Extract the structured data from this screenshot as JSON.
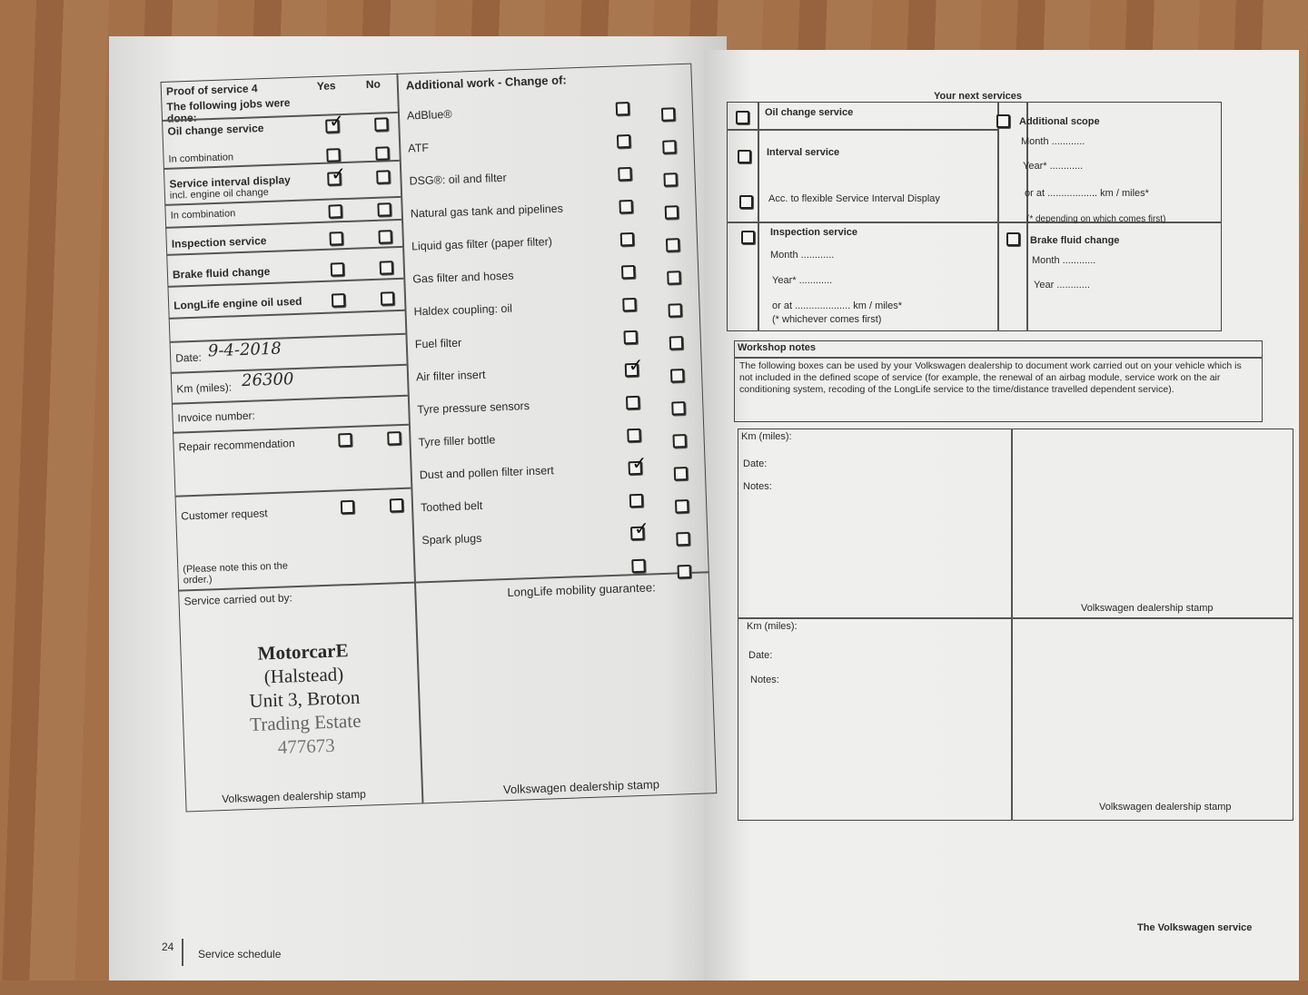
{
  "left_page": {
    "title": "Proof of service 4",
    "yes": "Yes",
    "no": "No",
    "jobs_intro": "The following jobs were done:",
    "jobs": [
      {
        "label": "Oil change service",
        "yes": true,
        "no": false
      },
      {
        "label": "In combination",
        "yes": false,
        "no": false
      },
      {
        "label": "Service interval display",
        "sub": "incl. engine oil change",
        "yes": true,
        "no": false
      },
      {
        "label": "In combination",
        "yes": false,
        "no": false
      },
      {
        "label": "Inspection service",
        "yes": false,
        "no": false
      },
      {
        "label": "Brake fluid change",
        "yes": false,
        "no": false
      },
      {
        "label": "LongLife engine oil used",
        "yes": false,
        "no": false
      }
    ],
    "date_label": "Date:",
    "date_value": "9-4-2018",
    "km_label": "Km (miles):",
    "km_value": "26300",
    "invoice_label": "Invoice number:",
    "repair_label": "Repair recommendation",
    "customer_label": "Customer request",
    "note": "(Please note this on the order.)",
    "additional_title": "Additional work - Change of:",
    "additional": [
      {
        "label": "AdBlue®",
        "yes": false
      },
      {
        "label": "ATF",
        "yes": false
      },
      {
        "label": "DSG®: oil and filter",
        "yes": false
      },
      {
        "label": "Natural gas tank and pipelines",
        "yes": false
      },
      {
        "label": "Liquid gas filter (paper filter)",
        "yes": false
      },
      {
        "label": "Gas filter and hoses",
        "yes": false
      },
      {
        "label": "Haldex coupling: oil",
        "yes": false
      },
      {
        "label": "Fuel filter",
        "yes": false
      },
      {
        "label": "Air filter insert",
        "yes": true
      },
      {
        "label": "Tyre pressure sensors",
        "yes": false
      },
      {
        "label": "Tyre filler bottle",
        "yes": false
      },
      {
        "label": "Dust and pollen filter insert",
        "yes": true
      },
      {
        "label": "Toothed belt",
        "yes": false
      },
      {
        "label": "Spark plugs",
        "yes": true
      },
      {
        "label": "",
        "yes": false
      }
    ],
    "service_by": "Service carried out by:",
    "stamp_lines": [
      "MotorcarE",
      "(Halstead)",
      "Unit 3, Broton",
      "Trading Estate",
      "477673"
    ],
    "stamp_label": "Volkswagen dealership stamp",
    "longlife": "LongLife mobility guarantee:",
    "stamp_label_2": "Volkswagen dealership stamp",
    "page_number": "24",
    "section": "Service schedule"
  },
  "right_page": {
    "next_title": "Your next services",
    "oil": "Oil change service",
    "interval": "Interval service",
    "flexible": "Acc. to flexible Service Interval Display",
    "inspection": "Inspection service",
    "month": "Month ............",
    "year": "Year* ............",
    "or_at": "or at .................... km / miles*",
    "whichever": "(* whichever comes first)",
    "additional": "Additional scope",
    "add_month": "Month ............",
    "add_year": "Year* ............",
    "add_or_at": "or at .................. km / miles*",
    "depending": "(* depending on which comes first)",
    "brake": "Brake fluid change",
    "brake_month": "Month ............",
    "brake_year": "Year ............",
    "workshop_title": "Workshop notes",
    "workshop_text": "The following boxes can be used by your Volkswagen dealership to document work carried out on your vehicle which is not included in the defined scope of service (for example, the renewal of an airbag module, service work on the air conditioning system, recoding of the LongLife service to the time/distance travelled dependent service).",
    "km": "Km (miles):",
    "date": "Date:",
    "notes": "Notes:",
    "stamp_label": "Volkswagen dealership stamp",
    "footer": "The Volkswagen service"
  }
}
